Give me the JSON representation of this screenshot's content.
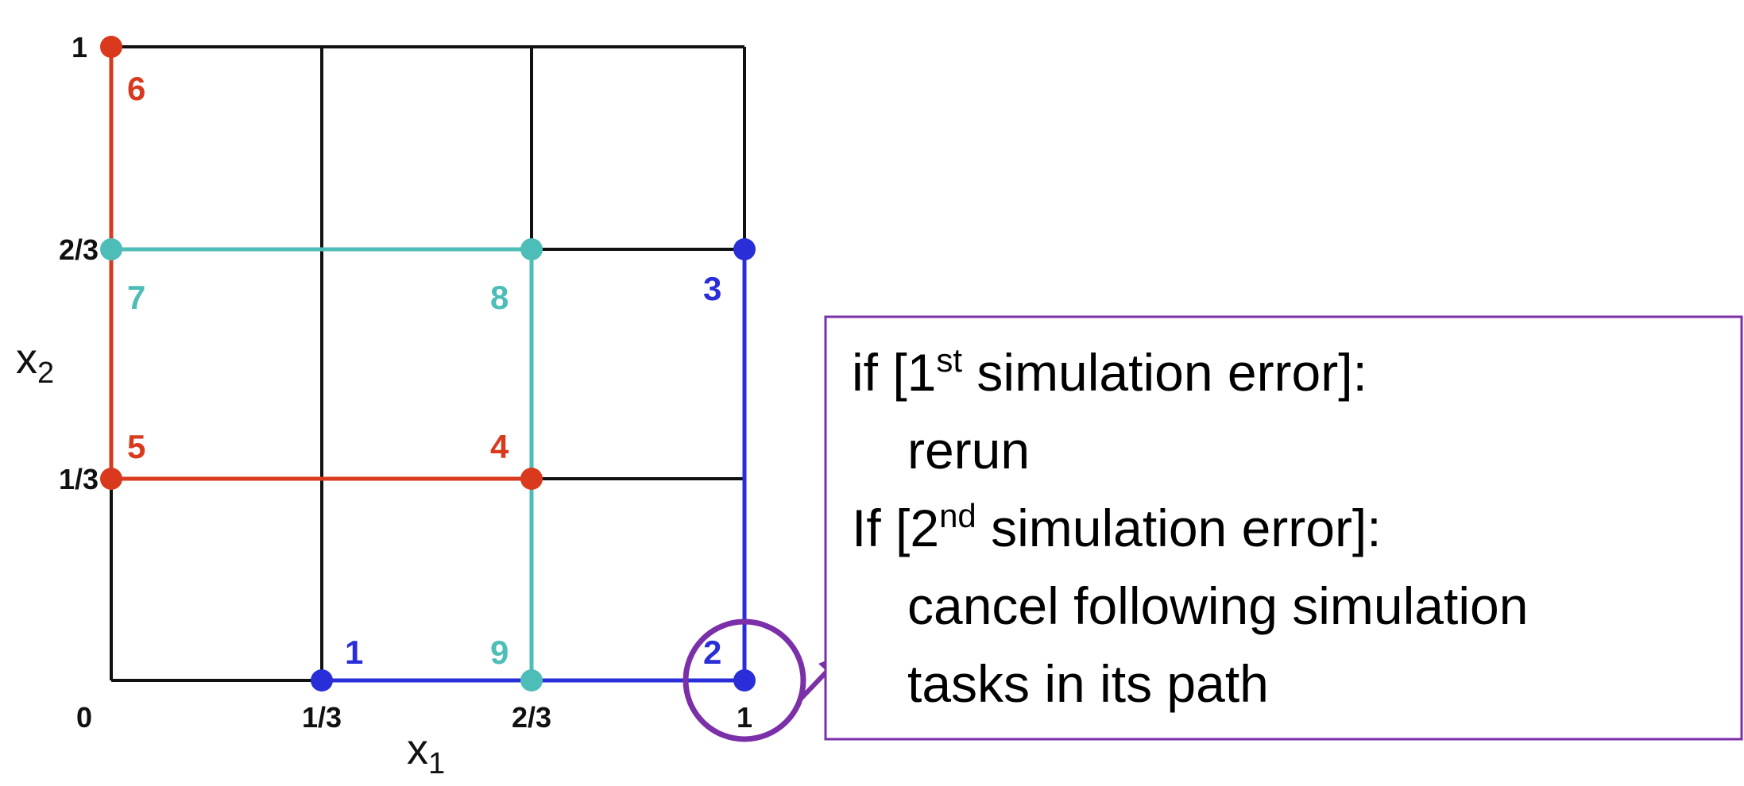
{
  "axes": {
    "x_ticks": [
      "0",
      "1/3",
      "2/3",
      "1"
    ],
    "y_ticks": [
      "1",
      "2/3",
      "1/3"
    ],
    "x_label": {
      "text": "x",
      "sub": "1"
    },
    "y_label": {
      "text": "x",
      "sub": "2"
    }
  },
  "nodes": [
    "1",
    "2",
    "3",
    "4",
    "5",
    "6",
    "7",
    "8",
    "9"
  ],
  "box": {
    "lines": [
      {
        "before": "if [1",
        "sup": "st",
        "after": " simulation error]:"
      },
      {
        "text": "rerun"
      },
      {
        "before": "If [2",
        "sup": "nd",
        "after": " simulation error]:"
      },
      {
        "text": "cancel following simulation"
      },
      {
        "text": "tasks in its path"
      }
    ]
  }
}
